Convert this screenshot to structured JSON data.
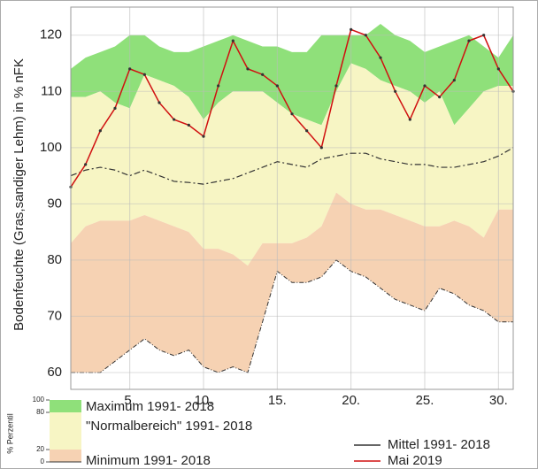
{
  "chart_data": {
    "type": "area-band",
    "y_label": "Bodenfeuchte (Gras,sandiger Lehm) in % nFK",
    "x": [
      1,
      2,
      3,
      4,
      5,
      6,
      7,
      8,
      9,
      10,
      11,
      12,
      13,
      14,
      15,
      16,
      17,
      18,
      19,
      20,
      21,
      22,
      23,
      24,
      25,
      26,
      27,
      28,
      29,
      30,
      31
    ],
    "xlim": [
      1,
      31
    ],
    "xticks": [
      {
        "value": 5,
        "label": "5."
      },
      {
        "value": 10,
        "label": "10."
      },
      {
        "value": 15,
        "label": "15."
      },
      {
        "value": 20,
        "label": "20."
      },
      {
        "value": 25,
        "label": "25."
      },
      {
        "value": 30,
        "label": "30."
      }
    ],
    "ylim": [
      57,
      125
    ],
    "yticks": [
      60,
      70,
      80,
      90,
      100,
      110,
      120
    ],
    "grid": true,
    "areas": [
      {
        "name": "Maximum 1991- 2018",
        "color": "#8fe07a",
        "values": [
          114,
          116,
          117,
          118,
          120,
          120,
          118,
          117,
          117,
          118,
          119,
          120,
          119,
          118,
          118,
          117,
          117,
          120,
          120,
          120,
          120,
          122,
          120,
          119,
          117,
          118,
          119,
          120,
          118,
          116,
          120
        ]
      },
      {
        "name": "\"Normalbereich\" 1991- 2018",
        "color": "#f7f5c4",
        "values": [
          109,
          109,
          110,
          108,
          107,
          113,
          112,
          111,
          109,
          105,
          108,
          110,
          110,
          110,
          108,
          106,
          105,
          104,
          110,
          115,
          114,
          112,
          111,
          110,
          108,
          110,
          104,
          107,
          110,
          111,
          111
        ]
      },
      {
        "name": "Minimum 1991- 2018",
        "color": "#f6d2b3",
        "values": [
          83,
          86,
          87,
          87,
          87,
          88,
          87,
          86,
          85,
          82,
          82,
          81,
          79,
          83,
          83,
          83,
          84,
          86,
          92,
          90,
          89,
          89,
          88,
          87,
          86,
          86,
          87,
          86,
          84,
          89,
          89
        ]
      }
    ],
    "min_values": [
      60,
      60,
      60,
      62,
      64,
      66,
      64,
      63,
      64,
      61,
      60,
      61,
      60,
      69,
      78,
      76,
      76,
      77,
      80,
      78,
      77,
      75,
      73,
      72,
      71,
      75,
      74,
      72,
      71,
      69,
      69
    ],
    "lines": [
      {
        "name": "Mittel 1991- 2018",
        "color": "#333333",
        "dashed": true,
        "values": [
          95,
          96,
          96.5,
          96,
          95,
          96,
          95,
          94,
          93.8,
          93.5,
          94,
          94.5,
          95.5,
          96.5,
          97.5,
          97,
          96.5,
          98,
          98.5,
          99,
          99,
          98,
          97.5,
          97,
          97,
          96.5,
          96.5,
          97,
          97.5,
          98.5,
          100
        ]
      },
      {
        "name": "Mai 2019",
        "color": "#d01010",
        "dashed": false,
        "values": [
          93,
          97,
          103,
          107,
          114,
          113,
          108,
          105,
          104,
          102,
          111,
          119,
          114,
          113,
          111,
          106,
          103,
          100,
          111,
          121,
          120,
          116,
          110,
          105,
          111,
          109,
          112,
          119,
          120,
          114,
          110
        ]
      }
    ],
    "percentile_axis": {
      "label": "% Perzentil",
      "ticks": [
        100,
        80,
        20,
        0
      ]
    }
  }
}
